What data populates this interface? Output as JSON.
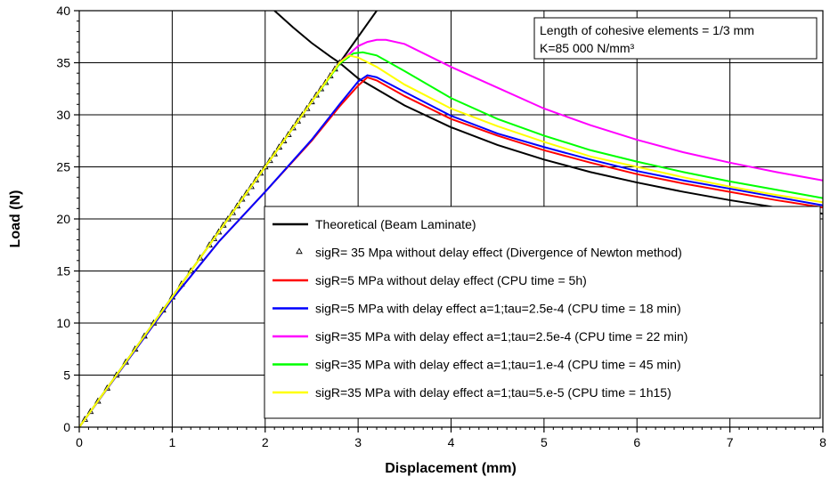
{
  "chart_data": {
    "type": "line",
    "xlabel": "Displacement (mm)",
    "ylabel": "Load (N)",
    "xlim": [
      0,
      8
    ],
    "ylim": [
      0,
      40
    ],
    "x_ticks": [
      "0",
      "1",
      "2",
      "3",
      "4",
      "5",
      "6",
      "7",
      "8"
    ],
    "y_ticks": [
      "0",
      "5",
      "10",
      "15",
      "20",
      "25",
      "30",
      "35",
      "40"
    ],
    "grid": true,
    "legend_position": "bottom-right",
    "annotation": {
      "line1": "Length of cohesive elements = 1/3 mm",
      "line2": "K=85 000 N/mm³"
    },
    "colors": {
      "theoretical": "#000000",
      "markers": "#000000",
      "red": "#ff0000",
      "blue": "#0000ff",
      "magenta": "#ff00ff",
      "green": "#00ff00",
      "yellow": "#ffff00"
    },
    "series": [
      {
        "name": "Theoretical (Beam Laminate)",
        "style": "line",
        "color": "#000000",
        "segments": [
          {
            "x": [
              0,
              0.5,
              1,
              1.5,
              2,
              2.5,
              2.85,
              3.2
            ],
            "y": [
              0,
              6.25,
              12.5,
              18.75,
              25,
              31.25,
              35.6,
              40
            ]
          },
          {
            "x": [
              2.1,
              2.3,
              2.5,
              2.7,
              2.8,
              3,
              3.5,
              4,
              4.5,
              5,
              5.5,
              6,
              6.5,
              7,
              7.5,
              8
            ],
            "y": [
              40,
              38.4,
              36.9,
              35.6,
              35.0,
              33.5,
              30.9,
              28.8,
              27.1,
              25.7,
              24.5,
              23.5,
              22.6,
              21.8,
              21.1,
              20.5
            ]
          }
        ]
      },
      {
        "name": "sigR= 35 Mpa without delay effect (Divergence of Newton method)",
        "style": "markers",
        "color": "#000000",
        "x": [
          0,
          0.06,
          0.12,
          0.2,
          0.3,
          0.4,
          0.5,
          0.6,
          0.7,
          0.8,
          0.9,
          1.0,
          1.1,
          1.2,
          1.3,
          1.4,
          1.45,
          1.5,
          1.55,
          1.6,
          1.65,
          1.7,
          1.75,
          1.8,
          1.85,
          1.9,
          1.95,
          2.0,
          2.05,
          2.1,
          2.15,
          2.2,
          2.25,
          2.3,
          2.35,
          2.4,
          2.45,
          2.5,
          2.55,
          2.6,
          2.65,
          2.7,
          2.75,
          2.8
        ],
        "y": [
          0,
          0.75,
          1.5,
          2.5,
          3.75,
          5.0,
          6.25,
          7.5,
          8.75,
          10.0,
          11.25,
          12.5,
          13.75,
          15.0,
          16.25,
          17.5,
          18.1,
          18.75,
          19.4,
          20.0,
          20.6,
          21.25,
          21.9,
          22.5,
          23.1,
          23.75,
          24.4,
          25.0,
          25.6,
          26.25,
          26.9,
          27.5,
          28.1,
          28.75,
          29.4,
          30.0,
          30.6,
          31.25,
          31.9,
          32.5,
          33.1,
          33.75,
          34.4,
          35.0
        ]
      },
      {
        "name": "sigR=5 MPa without delay effect (CPU time = 5h)",
        "style": "line",
        "color": "#ff0000",
        "x": [
          0,
          1,
          1.5,
          2,
          2.5,
          2.8,
          3.0,
          3.1,
          3.2,
          3.5,
          4,
          4.5,
          5,
          5.5,
          6,
          6.5,
          7,
          7.5,
          8
        ],
        "y": [
          0,
          12.3,
          17.8,
          22.6,
          27.5,
          30.8,
          32.8,
          33.6,
          33.3,
          31.8,
          29.6,
          28.0,
          26.6,
          25.4,
          24.3,
          23.4,
          22.6,
          21.8,
          21.1
        ]
      },
      {
        "name": "sigR=5 MPa with delay effect a=1;tau=2.5e-4 (CPU time = 18 min)",
        "style": "line",
        "color": "#0000ff",
        "x": [
          0,
          1,
          1.5,
          2,
          2.5,
          2.8,
          3.0,
          3.1,
          3.2,
          3.5,
          4,
          4.5,
          5,
          5.5,
          6,
          6.5,
          7,
          7.5,
          8
        ],
        "y": [
          0,
          12.3,
          17.8,
          22.6,
          27.6,
          31.0,
          33.2,
          33.8,
          33.6,
          32.2,
          29.9,
          28.2,
          26.9,
          25.7,
          24.6,
          23.7,
          22.9,
          22.1,
          21.3
        ]
      },
      {
        "name": "sigR=35 MPa with delay effect a=1;tau=2.5e-4 (CPU time = 22 min)",
        "style": "line",
        "color": "#ff00ff",
        "x": [
          0,
          1,
          2,
          2.5,
          2.8,
          3.0,
          3.1,
          3.2,
          3.3,
          3.5,
          4,
          4.5,
          5,
          5.5,
          6,
          6.5,
          7,
          7.5,
          8
        ],
        "y": [
          0,
          12.5,
          25.0,
          31.25,
          35.0,
          36.6,
          37.0,
          37.2,
          37.2,
          36.8,
          34.6,
          32.6,
          30.6,
          29.0,
          27.6,
          26.4,
          25.4,
          24.5,
          23.7
        ]
      },
      {
        "name": "sigR=35 MPa with delay effect a=1;tau=1.e-4 (CPU time = 45 min)",
        "style": "line",
        "color": "#00ff00",
        "x": [
          0,
          1,
          2,
          2.5,
          2.8,
          2.95,
          3.05,
          3.2,
          3.5,
          4,
          4.5,
          5,
          5.5,
          6,
          6.5,
          7,
          7.5,
          8
        ],
        "y": [
          0,
          12.5,
          25.0,
          31.25,
          34.9,
          35.9,
          36.0,
          35.7,
          34.2,
          31.6,
          29.6,
          28.0,
          26.6,
          25.5,
          24.5,
          23.6,
          22.8,
          22.0
        ]
      },
      {
        "name": "sigR=35 MPa with delay effect a=1;tau=5.e-5 (CPU time = 1h15)",
        "style": "line",
        "color": "#ffff00",
        "x": [
          0,
          1,
          2,
          2.5,
          2.8,
          2.9,
          3.0,
          3.2,
          3.5,
          4,
          4.5,
          5,
          5.5,
          6,
          6.5,
          7,
          7.5,
          8
        ],
        "y": [
          0,
          12.5,
          25.0,
          31.25,
          35.0,
          35.7,
          35.5,
          34.6,
          32.9,
          30.6,
          28.9,
          27.4,
          26.0,
          25.0,
          24.0,
          23.1,
          22.3,
          21.6
        ]
      }
    ]
  }
}
